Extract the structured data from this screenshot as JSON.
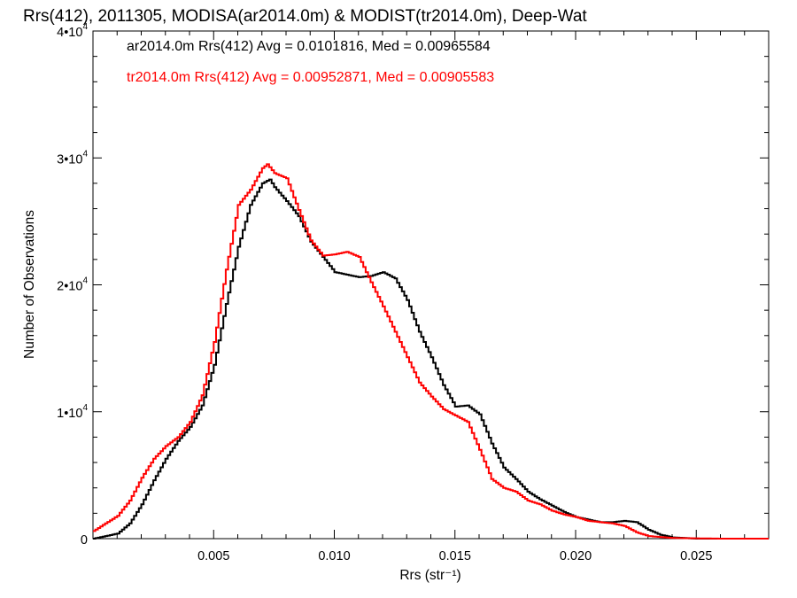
{
  "chart_data": {
    "type": "line",
    "title": "Rrs(412), 2011305, MODISA(ar2014.0m) & MODIST(tr2014.0m), Deep-Wat",
    "xlabel": "Rrs (str⁻¹)",
    "ylabel": "Number of Observations",
    "xlim": [
      0.0,
      0.028
    ],
    "ylim": [
      0,
      40000
    ],
    "x_ticks": [
      {
        "value": 0.005,
        "label": "0.005"
      },
      {
        "value": 0.01,
        "label": "0.010"
      },
      {
        "value": 0.015,
        "label": "0.015"
      },
      {
        "value": 0.02,
        "label": "0.020"
      },
      {
        "value": 0.025,
        "label": "0.025"
      }
    ],
    "y_ticks": [
      {
        "value": 0,
        "mantissa": "0",
        "exp": ""
      },
      {
        "value": 10000,
        "mantissa": "1•10",
        "exp": "4"
      },
      {
        "value": 20000,
        "mantissa": "2•10",
        "exp": "4"
      },
      {
        "value": 30000,
        "mantissa": "3•10",
        "exp": "4"
      },
      {
        "value": 40000,
        "mantissa": "4•10",
        "exp": "4"
      }
    ],
    "grid": false,
    "legend_position": "top-left",
    "series": [
      {
        "name": "ar2014.0m",
        "color": "#000000",
        "annotation": "ar2014.0m Rrs(412) Avg = 0.0101816, Med = 0.00965584",
        "x": [
          0.0,
          0.001,
          0.0015,
          0.002,
          0.0025,
          0.003,
          0.0035,
          0.004,
          0.0045,
          0.005,
          0.0055,
          0.006,
          0.0065,
          0.007,
          0.0073,
          0.0075,
          0.008,
          0.0085,
          0.009,
          0.0095,
          0.01,
          0.0105,
          0.011,
          0.0115,
          0.012,
          0.0125,
          0.013,
          0.0135,
          0.014,
          0.0145,
          0.015,
          0.0155,
          0.016,
          0.0165,
          0.017,
          0.0175,
          0.018,
          0.0185,
          0.019,
          0.0195,
          0.02,
          0.0205,
          0.021,
          0.0215,
          0.022,
          0.0225,
          0.023,
          0.0235,
          0.024,
          0.025,
          0.026,
          0.028
        ],
        "y": [
          0,
          400,
          1200,
          2700,
          4600,
          6300,
          7700,
          8800,
          10500,
          13700,
          18500,
          23000,
          26300,
          28000,
          28300,
          27700,
          26600,
          25400,
          23400,
          22200,
          21000,
          20800,
          20600,
          20700,
          21000,
          20500,
          18800,
          16300,
          14300,
          12100,
          10400,
          10500,
          9800,
          7500,
          5600,
          4700,
          3700,
          3100,
          2600,
          2100,
          1700,
          1500,
          1300,
          1300,
          1400,
          1300,
          700,
          300,
          100,
          0,
          0,
          0
        ]
      },
      {
        "name": "tr2014.0m",
        "color": "#ff0000",
        "annotation": "tr2014.0m Rrs(412) Avg = 0.00952871, Med = 0.00905583",
        "x": [
          0.0,
          0.001,
          0.0015,
          0.002,
          0.0025,
          0.003,
          0.0035,
          0.004,
          0.0045,
          0.005,
          0.0055,
          0.006,
          0.0065,
          0.007,
          0.0072,
          0.0075,
          0.008,
          0.0085,
          0.009,
          0.0095,
          0.01,
          0.0105,
          0.011,
          0.0115,
          0.012,
          0.0125,
          0.013,
          0.0135,
          0.014,
          0.0145,
          0.015,
          0.0155,
          0.016,
          0.0165,
          0.017,
          0.0175,
          0.018,
          0.0185,
          0.019,
          0.0195,
          0.02,
          0.0205,
          0.021,
          0.0215,
          0.022,
          0.0225,
          0.023,
          0.024,
          0.026,
          0.028
        ],
        "y": [
          600,
          1800,
          3000,
          4800,
          6300,
          7300,
          8000,
          9200,
          11300,
          15500,
          21200,
          26300,
          27500,
          29200,
          29500,
          28800,
          28400,
          25900,
          23500,
          22300,
          22400,
          22600,
          22200,
          20200,
          18300,
          16300,
          14300,
          12300,
          11200,
          10200,
          9700,
          9200,
          7000,
          4700,
          4000,
          3700,
          3000,
          2700,
          2200,
          1900,
          1700,
          1400,
          1300,
          1200,
          1000,
          500,
          200,
          50,
          0,
          0
        ]
      }
    ]
  }
}
